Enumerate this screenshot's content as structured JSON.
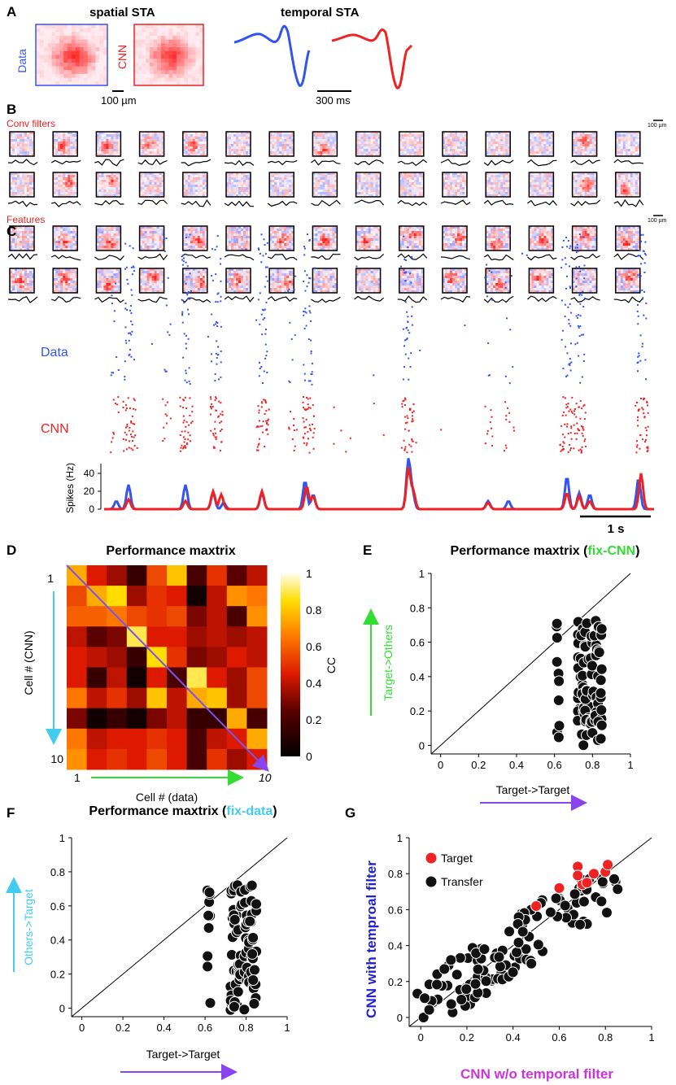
{
  "panels": {
    "A": {
      "letter": "A",
      "spatial_title": "spatial STA",
      "temporal_title": "temporal STA",
      "data_label": "Data",
      "cnn_label": "CNN",
      "space_scale": "100 µm",
      "time_scale": "300 ms"
    },
    "B": {
      "letter": "B",
      "conv_label": "Conv filters",
      "features_label": "Features",
      "scale_small": "100 µm"
    },
    "C": {
      "letter": "C",
      "data_label": "Data",
      "cnn_label": "CNN",
      "ylabel": "Spikes (Hz)",
      "yticks": [
        "0",
        "20",
        "40"
      ],
      "time_scale": "1 s"
    },
    "D": {
      "letter": "D",
      "title": "Performance maxtrix",
      "ylabel": "Cell # (CNN)",
      "xlabel": "Cell # (data)",
      "row_first": "1",
      "row_last": "10",
      "col_first": "1",
      "col_last": "10",
      "colorbar_label": "CC",
      "colorbar_ticks": [
        "1",
        "0.8",
        "0.6",
        "0.4",
        "0.2",
        "0"
      ]
    },
    "E": {
      "letter": "E",
      "title_main": "Performance maxtrix (",
      "title_accent": "fix-CNN",
      "title_end": ")",
      "xlabel": "Target->Target",
      "ylabel": "Target->Others",
      "xticks": [
        "0",
        "0.2",
        "0.4",
        "0.6",
        "0.8",
        "1"
      ],
      "yticks": [
        "0",
        "0.2",
        "0.4",
        "0.6",
        "0.8",
        "1"
      ]
    },
    "F": {
      "letter": "F",
      "title_main": "Performance maxtrix (",
      "title_accent": "fix-data",
      "title_end": ")",
      "xlabel": "Target->Target",
      "ylabel": "Others->Target",
      "xticks": [
        "0",
        "0.2",
        "0.4",
        "0.6",
        "0.8",
        "1"
      ],
      "yticks": [
        "0",
        "0.2",
        "0.4",
        "0.6",
        "0.8",
        "1"
      ]
    },
    "G": {
      "letter": "G",
      "xlabel": "CNN w/o temporal filter",
      "ylabel": "CNN with temproal filter",
      "legend_target": "Target",
      "legend_transfer": "Transfer",
      "xticks": [
        "0",
        "0.2",
        "0.4",
        "0.6",
        "0.8",
        "1"
      ],
      "yticks": [
        "0",
        "0.2",
        "0.4",
        "0.6",
        "0.8",
        "1"
      ]
    }
  },
  "colors": {
    "blue": "#3355ee",
    "red": "#ee2222",
    "green": "#33dd33",
    "cyan": "#44ccee",
    "purple": "#8844ee",
    "magenta": "#cc33dd",
    "navy": "#2222cc"
  },
  "chart_data": [
    {
      "type": "heatmap",
      "title": "Performance maxtrix",
      "xlabel": "Cell # (data)",
      "ylabel": "Cell # (CNN)",
      "colorbar": "CC",
      "clim": [
        0,
        1
      ],
      "values": [
        [
          0.75,
          0.45,
          0.35,
          0.15,
          0.55,
          0.8,
          0.2,
          0.5,
          0.25,
          0.4
        ],
        [
          0.55,
          0.75,
          0.85,
          0.35,
          0.5,
          0.45,
          0.05,
          0.4,
          0.7,
          0.65
        ],
        [
          0.6,
          0.6,
          0.65,
          0.55,
          0.5,
          0.55,
          0.3,
          0.4,
          0.2,
          0.7
        ],
        [
          0.4,
          0.25,
          0.3,
          0.9,
          0.45,
          0.45,
          0.35,
          0.4,
          0.35,
          0.4
        ],
        [
          0.45,
          0.4,
          0.35,
          0.15,
          0.85,
          0.5,
          0.3,
          0.35,
          0.45,
          0.4
        ],
        [
          0.45,
          0.15,
          0.4,
          0.05,
          0.45,
          0.2,
          0.9,
          0.45,
          0.35,
          0.55
        ],
        [
          0.65,
          0.4,
          0.5,
          0.35,
          0.8,
          0.4,
          0.75,
          0.8,
          0.35,
          0.55
        ],
        [
          0.3,
          0.05,
          0.15,
          0.05,
          0.3,
          0.4,
          0.15,
          0.15,
          0.75,
          0.2
        ],
        [
          0.65,
          0.4,
          0.45,
          0.45,
          0.5,
          0.45,
          0.2,
          0.4,
          0.45,
          0.75
        ],
        [
          0.7,
          0.45,
          0.5,
          0.45,
          0.55,
          0.45,
          0.2,
          0.5,
          0.35,
          0.45
        ]
      ]
    },
    {
      "type": "scatter",
      "title": "Performance maxtrix (fix-CNN)",
      "xlabel": "Target->Target",
      "ylabel": "Target->Others",
      "xlim": [
        -0.05,
        1
      ],
      "ylim": [
        -0.05,
        1
      ],
      "x_cluster_values": [
        0.62,
        0.73,
        0.75,
        0.77,
        0.8,
        0.82,
        0.84
      ],
      "y_range": [
        0.0,
        0.73
      ]
    },
    {
      "type": "scatter",
      "title": "Performance maxtrix (fix-data)",
      "xlabel": "Target->Target",
      "ylabel": "Others->Target",
      "xlim": [
        -0.05,
        1
      ],
      "ylim": [
        -0.05,
        1
      ],
      "x_cluster_values": [
        0.62,
        0.73,
        0.75,
        0.77,
        0.8,
        0.82,
        0.84
      ],
      "y_range": [
        -0.02,
        0.73
      ]
    },
    {
      "type": "scatter",
      "xlabel": "CNN w/o temporal filter",
      "ylabel": "CNN with temproal filter",
      "xlim": [
        -0.05,
        1
      ],
      "ylim": [
        -0.05,
        1
      ],
      "series": [
        {
          "name": "Target",
          "x": [
            0.5,
            0.6,
            0.68,
            0.7,
            0.72,
            0.75,
            0.8,
            0.81,
            0.68
          ],
          "y": [
            0.62,
            0.72,
            0.84,
            0.74,
            0.75,
            0.8,
            0.81,
            0.85,
            0.79
          ]
        },
        {
          "name": "Transfer",
          "x_range": [
            -0.02,
            0.86
          ],
          "y_range": [
            0.0,
            0.77
          ]
        }
      ]
    }
  ]
}
